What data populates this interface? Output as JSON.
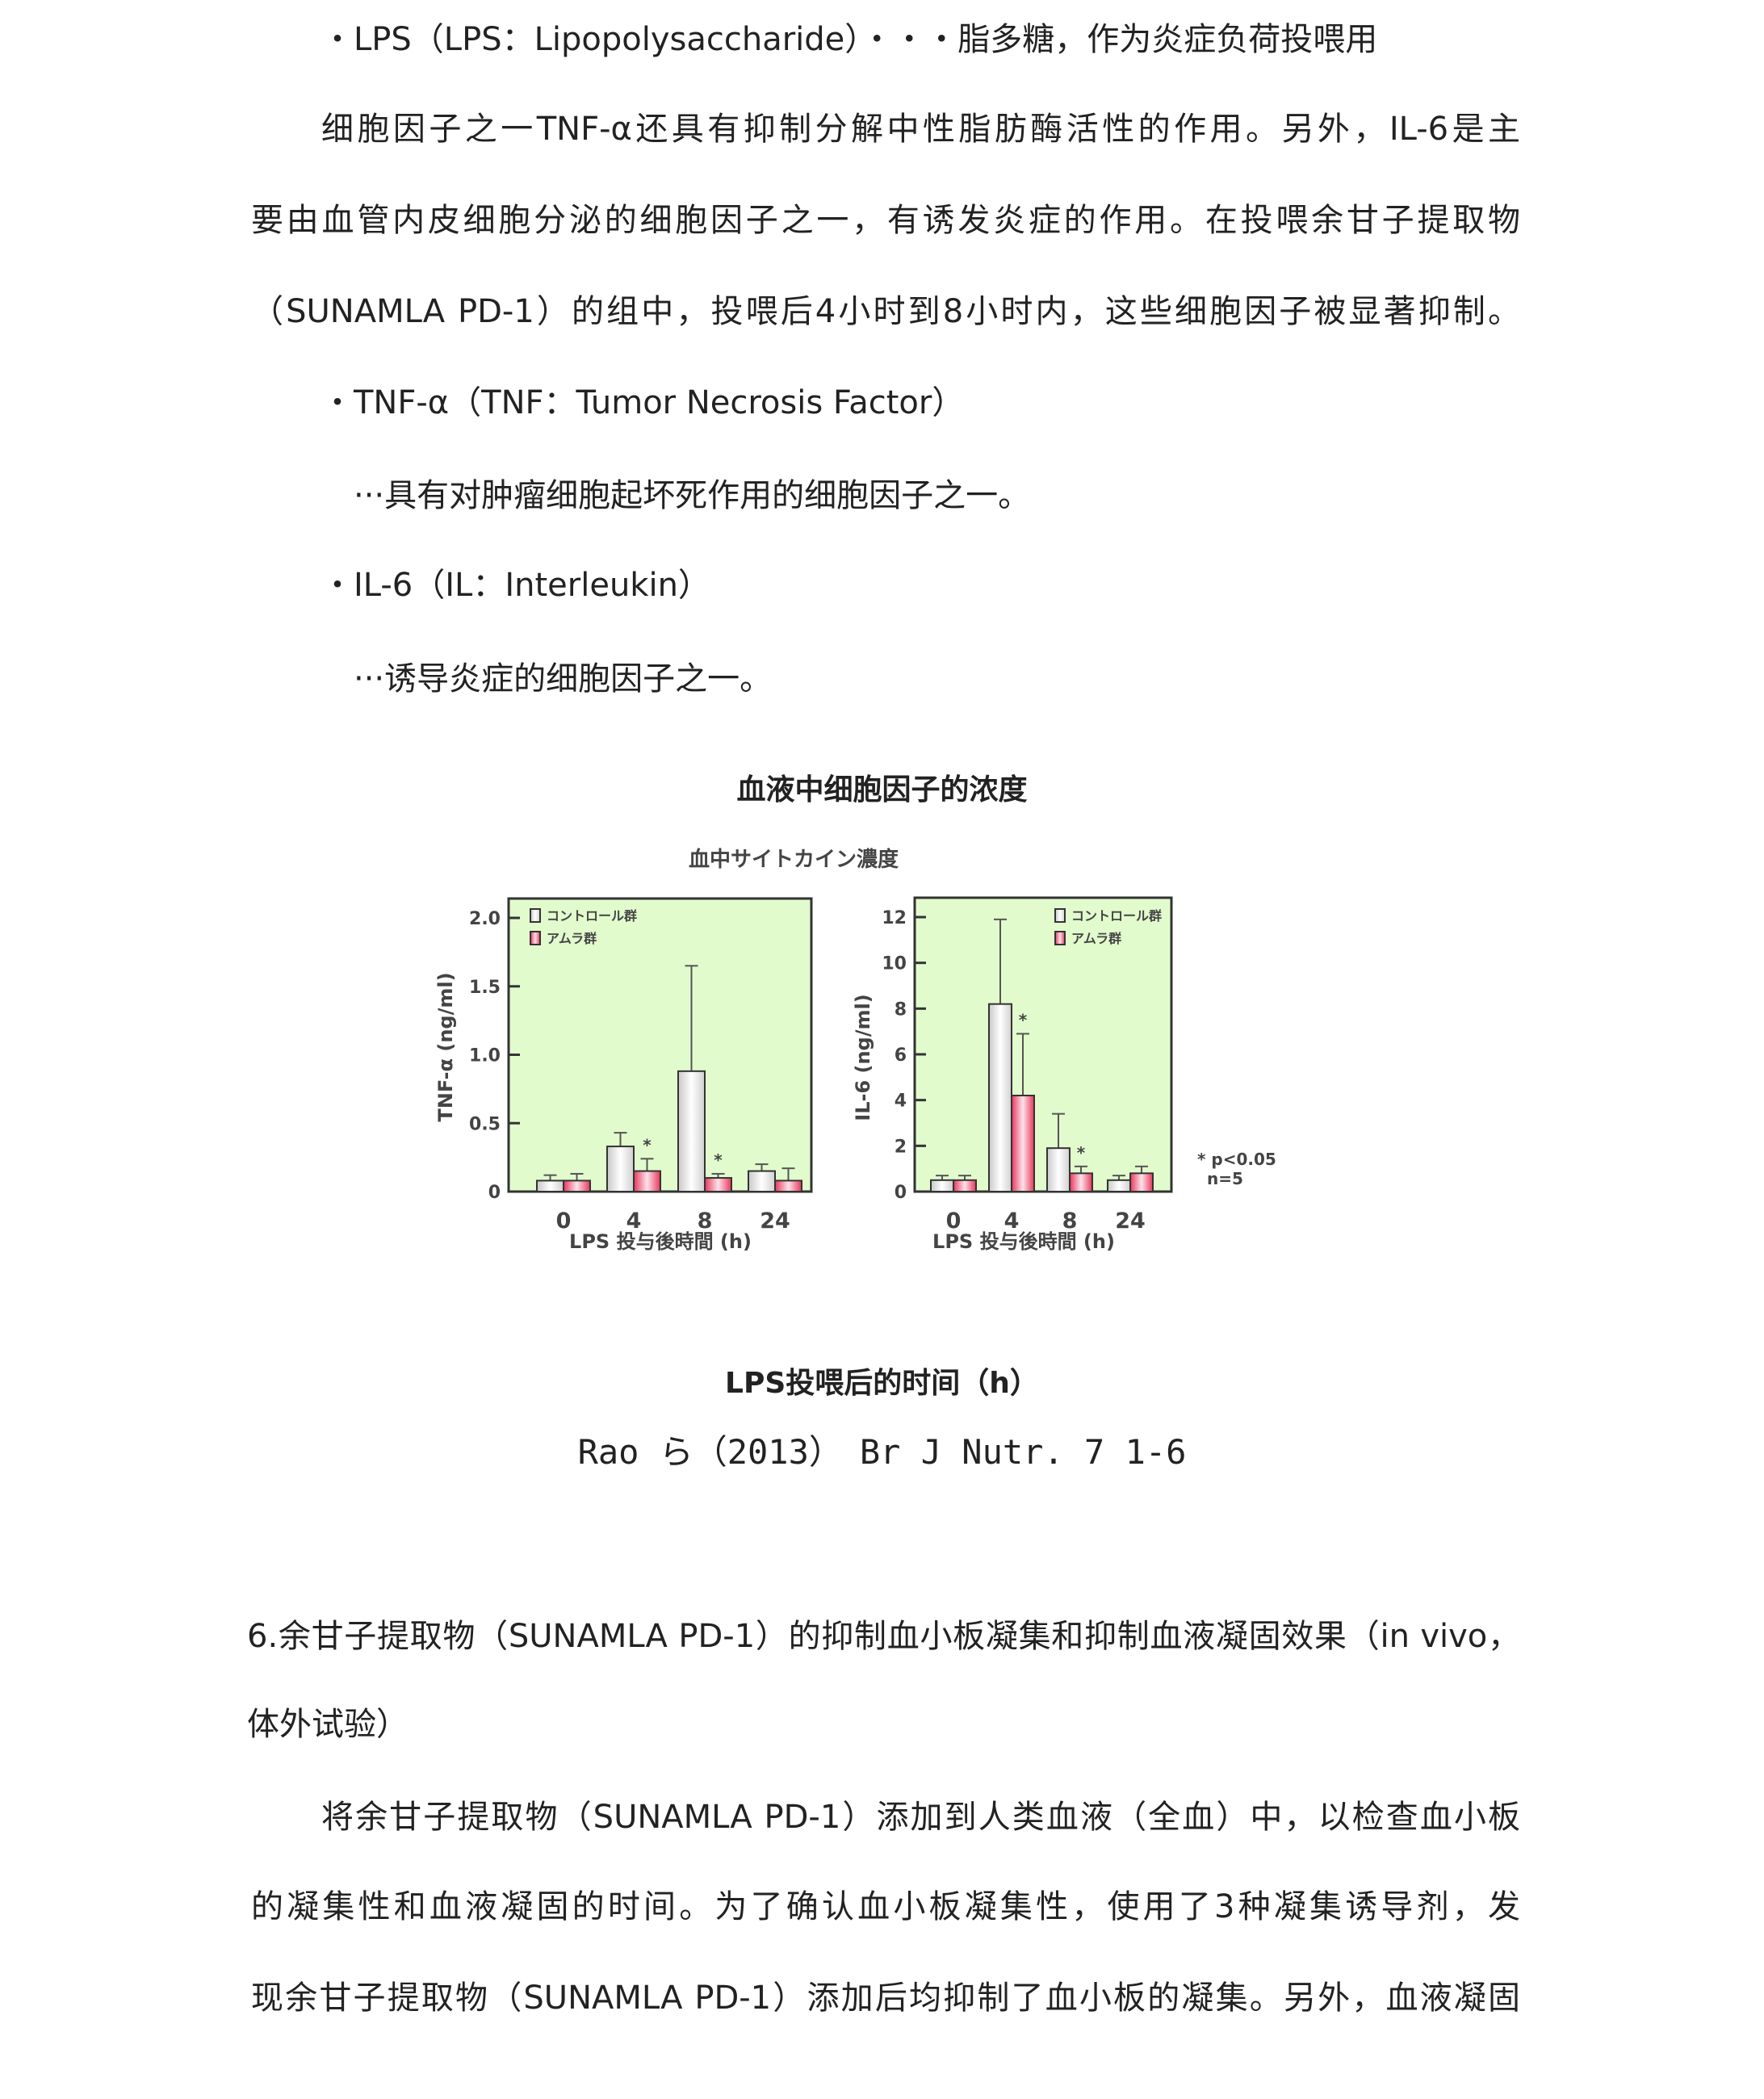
{
  "lines_top": [
    "・LPS（LPS：Lipopolysaccharide）・・・脂多糖，作为炎症负荷投喂用",
    "细胞因子之一TNF-α还具有抑制分解中性脂肪酶活性的作用。另外，IL-6是主",
    "要由血管内皮细胞分泌的细胞因子之一，有诱发炎症的作用。在投喂余甘子提取物",
    "（SUNAMLA PD-1）的组中，投喂后4小时到8小时内，这些细胞因子被显著抑制。",
    "・TNF-α（TNF：Tumor Necrosis Factor）",
    "···具有对肿瘤细胞起坏死作用的细胞因子之一。",
    "・IL-6（IL：Interleukin）",
    "···诱导炎症的细胞因子之一。"
  ],
  "figure": {
    "caption_title": "血液中细胞因子的浓度",
    "caption_xlabel": "LPS投喂后的时间（h）",
    "citation": "Rao ら（2013）　Br J Nutr. 7 1-6"
  },
  "chart_data": [
    {
      "type": "bar",
      "title": "血中サイトカイン濃度",
      "xlabel": "LPS 投与後時間 (h)",
      "ylabel": "TNF-α (ng/ml)",
      "categories": [
        "0",
        "4",
        "8",
        "24"
      ],
      "ylim": [
        0,
        2.0
      ],
      "yticks": [
        "0",
        "0.5",
        "1.0",
        "1.5",
        "2.0"
      ],
      "ytick_values": [
        0,
        0.5,
        1.0,
        1.5,
        2.0
      ],
      "legend_position": "top-left",
      "series": [
        {
          "name": "コントロール群",
          "color": "#ffffff",
          "values": [
            0.08,
            0.33,
            0.88,
            0.15
          ],
          "error_top": [
            0.12,
            0.43,
            1.65,
            0.2
          ]
        },
        {
          "name": "アムラ群",
          "color": "#f0506e",
          "values": [
            0.08,
            0.15,
            0.1,
            0.08
          ],
          "error_top": [
            0.13,
            0.24,
            0.13,
            0.17
          ],
          "significant": [
            false,
            true,
            true,
            false
          ]
        }
      ],
      "background": "#e2fbcd"
    },
    {
      "type": "bar",
      "xlabel": "LPS 投与後時間 (h)",
      "ylabel": "IL-6 (ng/ml)",
      "categories": [
        "0",
        "4",
        "8",
        "24"
      ],
      "ylim": [
        0,
        12
      ],
      "yticks": [
        "0",
        "2",
        "4",
        "6",
        "8",
        "10",
        "12"
      ],
      "ytick_values": [
        0,
        2,
        4,
        6,
        8,
        10,
        12
      ],
      "legend_position": "top-right",
      "series": [
        {
          "name": "コントロール群",
          "color": "#ffffff",
          "values": [
            0.5,
            8.2,
            1.9,
            0.5
          ],
          "error_top": [
            0.7,
            11.9,
            3.4,
            0.7
          ]
        },
        {
          "name": "アムラ群",
          "color": "#f0506e",
          "values": [
            0.5,
            4.2,
            0.8,
            0.8
          ],
          "error_top": [
            0.7,
            6.9,
            1.1,
            1.1
          ],
          "significant": [
            false,
            true,
            true,
            false
          ]
        }
      ],
      "note": [
        "* p<0.05",
        "n=5"
      ],
      "background": "#e2fbcd"
    }
  ],
  "lines_bottom": [
    "6.余甘子提取物（SUNAMLA PD-1）的抑制血小板凝集和抑制血液凝固效果（in vivo，",
    "体外试验）",
    "将余甘子提取物（SUNAMLA PD-1）添加到人类血液（全血）中，以检查血小板",
    "的凝集性和血液凝固的时间。为了确认血小板凝集性，使用了3种凝集诱导剂，发",
    "现余甘子提取物（SUNAMLA PD-1）添加后均抑制了血小板的凝集。另外，血液凝固"
  ]
}
